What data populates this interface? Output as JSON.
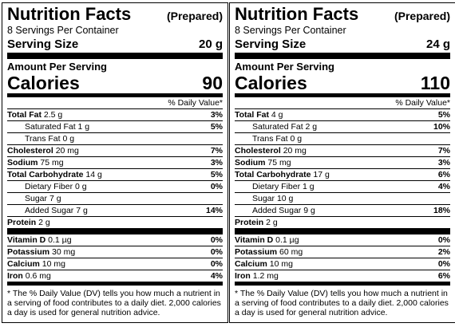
{
  "labels": [
    {
      "title": "Nutrition Facts",
      "prepared": "(Prepared)",
      "servings": "8 Servings Per Container",
      "serving_size_label": "Serving Size",
      "serving_size": "20 g",
      "amount_per_serving": "Amount Per Serving",
      "calories_label": "Calories",
      "calories": "90",
      "dv_header": "% Daily Value*",
      "nutrients": [
        {
          "name": "Total Fat",
          "amount": "2.5 g",
          "dv": "3%",
          "sub": [
            {
              "name": "Saturated Fat",
              "amount": "1 g",
              "dv": "5%"
            },
            {
              "name": "Trans Fat",
              "amount": "0 g"
            }
          ]
        },
        {
          "name": "Cholesterol",
          "amount": "20 mg",
          "dv": "7%"
        },
        {
          "name": "Sodium",
          "amount": "75 mg",
          "dv": "3%"
        },
        {
          "name": "Total Carbohydrate",
          "amount": "14 g",
          "dv": "5%",
          "sub": [
            {
              "name": "Dietary Fiber",
              "amount": "0 g",
              "dv": "0%"
            },
            {
              "name": "Sugar",
              "amount": "7 g"
            },
            {
              "name": "Added Sugar",
              "amount": "7 g",
              "dv": "14%"
            }
          ]
        },
        {
          "name": "Protein",
          "amount": "2 g"
        }
      ],
      "vitamins": [
        {
          "name": "Vitamin D",
          "amount": "0.1 µg",
          "dv": "0%"
        },
        {
          "name": "Potassium",
          "amount": "30 mg",
          "dv": "0%"
        },
        {
          "name": "Calcium",
          "amount": "10 mg",
          "dv": "0%"
        },
        {
          "name": "Iron",
          "amount": "0.6 mg",
          "dv": "4%"
        }
      ],
      "footnote": "* The % Daily Value (DV) tells you how much a nutrient in a serving of food contributes to a daily diet. 2,000 calories a day is used for general nutrition advice."
    },
    {
      "title": "Nutrition Facts",
      "prepared": "(Prepared)",
      "servings": "8 Servings Per Container",
      "serving_size_label": "Serving Size",
      "serving_size": "24 g",
      "amount_per_serving": "Amount Per Serving",
      "calories_label": "Calories",
      "calories": "110",
      "dv_header": "% Daily Value*",
      "nutrients": [
        {
          "name": "Total Fat",
          "amount": "4 g",
          "dv": "5%",
          "sub": [
            {
              "name": "Saturated Fat",
              "amount": "2 g",
              "dv": "10%"
            },
            {
              "name": "Trans Fat",
              "amount": "0 g"
            }
          ]
        },
        {
          "name": "Cholesterol",
          "amount": "20 mg",
          "dv": "7%"
        },
        {
          "name": "Sodium",
          "amount": "75 mg",
          "dv": "3%"
        },
        {
          "name": "Total Carbohydrate",
          "amount": "17 g",
          "dv": "6%",
          "sub": [
            {
              "name": "Dietary Fiber",
              "amount": "1 g",
              "dv": "4%"
            },
            {
              "name": "Sugar",
              "amount": "10 g"
            },
            {
              "name": "Added Sugar",
              "amount": "9 g",
              "dv": "18%"
            }
          ]
        },
        {
          "name": "Protein",
          "amount": "2 g"
        }
      ],
      "vitamins": [
        {
          "name": "Vitamin D",
          "amount": "0.1 µg",
          "dv": "0%"
        },
        {
          "name": "Potassium",
          "amount": "60 mg",
          "dv": "2%"
        },
        {
          "name": "Calcium",
          "amount": "10 mg",
          "dv": "0%"
        },
        {
          "name": "Iron",
          "amount": "1.2 mg",
          "dv": "6%"
        }
      ],
      "footnote": "* The % Daily Value (DV) tells you how much a nutrient in a serving of food contributes to a daily diet. 2,000 calories a day is used for general nutrition advice."
    }
  ]
}
